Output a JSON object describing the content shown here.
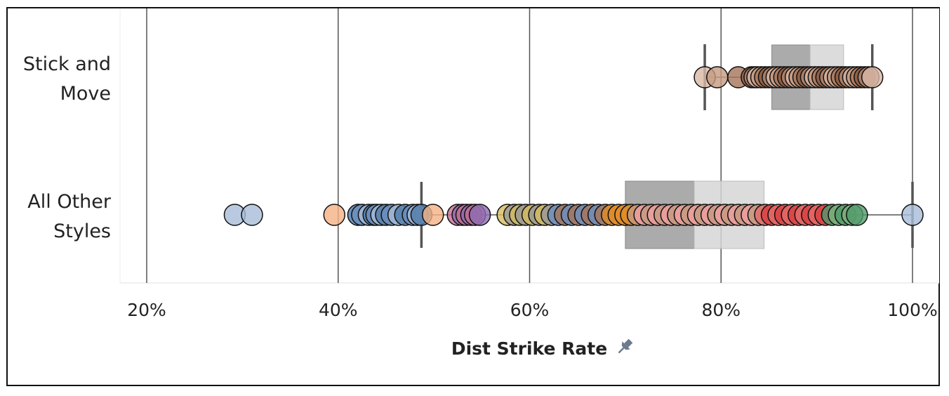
{
  "chart_data": {
    "type": "scatter",
    "subtype": "box-and-whisker dot strip",
    "title": "",
    "xlabel": "Dist Strike Rate",
    "ylabel": "",
    "xlim": [
      17,
      102
    ],
    "x_ticks": [
      {
        "value": 20,
        "label": "20%"
      },
      {
        "value": 40,
        "label": "40%"
      },
      {
        "value": 60,
        "label": "60%"
      },
      {
        "value": 80,
        "label": "80%"
      },
      {
        "value": 100,
        "label": "100%"
      }
    ],
    "grid": "vertical",
    "axis_icon": "pin-icon",
    "colors": {
      "gridline": "#555555",
      "box_lower": "#9c9c9c",
      "box_upper": "#d6d6d6",
      "whisker": "#555555",
      "dot_stroke": "#111111",
      "stick_palette": [
        "#d9b8a6",
        "#c49a80",
        "#a5745a",
        "#8a5a3e",
        "#b08670"
      ],
      "other_palette": [
        "#f4b183",
        "#6d8fbf",
        "#4e79a7",
        "#a7bdd8",
        "#e08c2a",
        "#d6bc5e",
        "#8c6bb1",
        "#c46e8f",
        "#e46c6a",
        "#d83f3f",
        "#f0a0a0",
        "#7fb07c",
        "#4f9a6b",
        "#999999"
      ]
    },
    "categories": [
      {
        "name_lines": [
          "Stick and",
          "Move"
        ],
        "box": {
          "whisker_low": 78.3,
          "q1": 85.3,
          "median": 89.3,
          "q3": 92.8,
          "whisker_high": 95.8
        },
        "points": [
          78.3,
          79.6,
          81.8,
          83.2,
          83.5,
          83.8,
          84.2,
          84.6,
          85.0,
          85.4,
          85.8,
          86.2,
          86.6,
          87.0,
          87.4,
          87.8,
          88.2,
          88.6,
          89.0,
          89.4,
          89.8,
          90.2,
          90.6,
          91.0,
          91.4,
          91.8,
          92.2,
          92.6,
          93.0,
          93.4,
          93.8,
          94.2,
          94.6,
          95.0,
          95.4,
          95.8
        ]
      },
      {
        "name_lines": [
          "All Other",
          "Styles"
        ],
        "box": {
          "whisker_low": 48.7,
          "q1": 70.0,
          "median": 77.2,
          "q3": 84.5,
          "whisker_high": 100.0
        },
        "points": [
          29.2,
          31.0,
          39.6,
          42.1,
          42.5,
          43.2,
          43.7,
          44.0,
          44.5,
          45.0,
          45.6,
          46.3,
          47.0,
          47.8,
          48.3,
          48.7,
          49.9,
          52.5,
          53.0,
          53.4,
          53.9,
          54.3,
          54.8,
          57.7,
          58.4,
          59.0,
          59.6,
          60.3,
          61.0,
          61.6,
          62.3,
          63.0,
          63.7,
          64.4,
          65.1,
          65.8,
          66.5,
          67.2,
          67.9,
          68.6,
          69.3,
          70.0,
          70.6,
          71.3,
          72.0,
          72.7,
          73.4,
          74.1,
          74.8,
          75.5,
          76.2,
          76.9,
          77.6,
          78.3,
          79.0,
          79.7,
          80.4,
          81.1,
          81.8,
          82.5,
          83.2,
          83.9,
          84.6,
          85.3,
          86.0,
          86.7,
          87.4,
          88.1,
          88.8,
          89.5,
          90.2,
          90.9,
          91.6,
          92.3,
          93.0,
          93.7,
          94.2,
          100.0
        ]
      }
    ]
  }
}
